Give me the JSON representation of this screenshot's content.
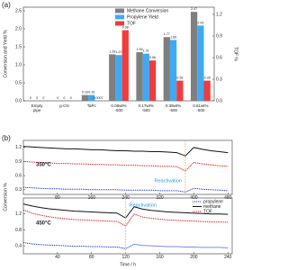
{
  "chart_data": [
    {
      "type": "bar",
      "panel_label": "(a)",
      "ylabel": "Conversion and Yield %",
      "y2label": "TOF %",
      "categories": [
        "Empty\npipe",
        "g-CN",
        "TaPc",
        "0.08wt%\n-500",
        "0.17wt%\n-500",
        "0.38wt%\n-500",
        "0.61wt%\n-500"
      ],
      "series": [
        {
          "name": "Methane Conversion",
          "color": "#7f7f7f",
          "values": [
            0,
            0,
            0.16,
            1.29,
            1.35,
            1.77,
            2.47
          ]
        },
        {
          "name": "Propylene Yield",
          "color": "#3fa9f5",
          "values": [
            0,
            0,
            0.16,
            1.27,
            1.31,
            1.69,
            2.09
          ]
        },
        {
          "name": "TOF",
          "color": "#f03c3c",
          "axis": "y2",
          "values": [
            0,
            0,
            0.0007,
            0.98,
            0.56,
            0.28,
            0.28
          ]
        }
      ],
      "ylim": [
        0,
        2.6
      ],
      "yticks": [
        {
          "value": 0,
          "label": "0.0"
        },
        0.5,
        {
          "value": 1,
          "label": "1.0"
        },
        1.5,
        {
          "value": 2,
          "label": "2.0"
        },
        2.5
      ],
      "y2lim": [
        0,
        1.3
      ],
      "y2ticks": [
        {
          "value": 0,
          "label": "0.0"
        },
        0.3,
        0.6,
        0.9,
        1.2
      ]
    },
    {
      "type": "line",
      "panel_label": "(b)",
      "label": "350°C",
      "ylabel": "Conversion %",
      "reactivation": {
        "text": "Reactivation",
        "x": 380
      },
      "x": [
        0,
        20,
        40,
        60,
        80,
        100,
        120,
        140,
        160,
        180,
        200,
        220,
        240,
        260,
        280,
        300,
        320,
        340,
        360,
        380,
        400,
        420,
        440,
        460,
        480
      ],
      "series": [
        {
          "name": "propylene",
          "color": "#1f3fd6",
          "values": [
            0.35,
            0.34,
            0.33,
            0.32,
            0.32,
            0.31,
            0.31,
            0.31,
            0.3,
            0.3,
            0.3,
            0.3,
            0.29,
            0.29,
            0.29,
            0.29,
            0.28,
            0.28,
            0.28,
            0.25,
            0.33,
            0.31,
            0.3,
            0.29,
            0.28
          ]
        },
        {
          "name": "methane",
          "color": "#111111",
          "values": [
            1.22,
            1.21,
            1.2,
            1.19,
            1.18,
            1.17,
            1.17,
            1.16,
            1.15,
            1.15,
            1.14,
            1.13,
            1.13,
            1.12,
            1.12,
            1.11,
            1.11,
            1.1,
            1.09,
            1.02,
            1.2,
            1.16,
            1.13,
            1.11,
            1.09
          ]
        },
        {
          "name": "TOF",
          "color": "#e02020",
          "values": [
            0.9,
            0.89,
            0.88,
            0.87,
            0.86,
            0.86,
            0.85,
            0.85,
            0.84,
            0.84,
            0.83,
            0.83,
            0.82,
            0.82,
            0.81,
            0.81,
            0.8,
            0.8,
            0.79,
            0.7,
            0.88,
            0.85,
            0.83,
            0.81,
            0.8
          ]
        }
      ],
      "xlim": [
        0,
        490
      ],
      "xticks": [
        80,
        160,
        240,
        320,
        400,
        480
      ],
      "ylim": [
        0.2,
        1.35
      ],
      "yticks": [
        0.3,
        0.6,
        0.9,
        1.2
      ]
    },
    {
      "type": "line",
      "label": "450°C",
      "xlabel": "Time / h",
      "legend": "upper right",
      "reactivation": {
        "text": "Reactivation",
        "x": 120
      },
      "x": [
        0,
        10,
        20,
        30,
        40,
        50,
        60,
        70,
        80,
        90,
        100,
        110,
        120,
        130,
        140,
        150,
        160,
        170,
        180,
        190,
        200,
        210,
        220,
        230,
        240
      ],
      "series": [
        {
          "name": "propylene",
          "color": "#1f3fd6",
          "values": [
            0.48,
            0.45,
            0.43,
            0.42,
            0.41,
            0.4,
            0.39,
            0.39,
            0.38,
            0.38,
            0.37,
            0.37,
            0.33,
            0.44,
            0.41,
            0.4,
            0.39,
            0.38,
            0.38,
            0.37,
            0.37,
            0.36,
            0.36,
            0.36,
            0.35
          ]
        },
        {
          "name": "methane",
          "color": "#111111",
          "values": [
            1.45,
            1.4,
            1.36,
            1.33,
            1.31,
            1.29,
            1.27,
            1.26,
            1.25,
            1.24,
            1.23,
            1.22,
            1.1,
            1.38,
            1.32,
            1.29,
            1.27,
            1.25,
            1.24,
            1.23,
            1.22,
            1.21,
            1.2,
            1.2,
            1.19
          ]
        },
        {
          "name": "TOF",
          "color": "#e02020",
          "values": [
            1.3,
            1.22,
            1.17,
            1.13,
            1.1,
            1.08,
            1.06,
            1.05,
            1.04,
            1.03,
            1.02,
            1.01,
            0.9,
            1.2,
            1.12,
            1.09,
            1.07,
            1.05,
            1.04,
            1.03,
            1.02,
            1.01,
            1.0,
            1.0,
            0.99
          ]
        }
      ],
      "xlim": [
        0,
        245
      ],
      "xticks": [
        40,
        80,
        120,
        160,
        200,
        240
      ],
      "ylim": [
        0.2,
        1.6
      ],
      "yticks": [
        0.4,
        0.8,
        1.2
      ]
    }
  ]
}
